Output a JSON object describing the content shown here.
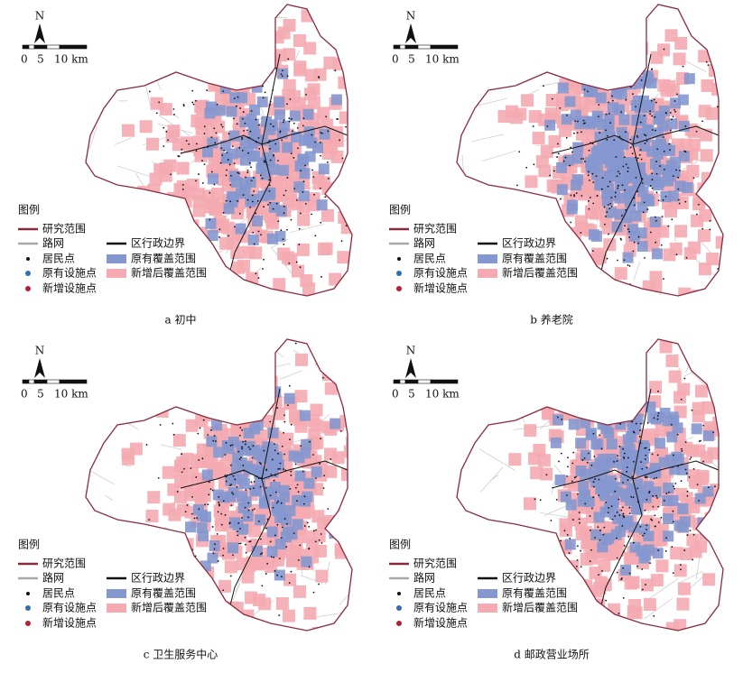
{
  "north": "N",
  "scale_bar": {
    "labels": [
      "0",
      "5",
      "10 km"
    ]
  },
  "legend": {
    "title": "图例",
    "items": [
      {
        "label": "研究范围",
        "symbol": "line",
        "color": "#8b2a3e"
      },
      {
        "label": "路网",
        "symbol": "line",
        "color": "#a8a8a8"
      },
      {
        "label": "居民点",
        "symbol": "dot",
        "color": "#111111"
      },
      {
        "label": "原有设施点",
        "symbol": "dot",
        "color": "#2f6db5"
      },
      {
        "label": "新增设施点",
        "symbol": "dot",
        "color": "#b22234"
      },
      {
        "label": "区行政边界",
        "symbol": "line",
        "color": "#111111"
      },
      {
        "label": "原有覆盖范围",
        "symbol": "rect",
        "color": "#8597cf"
      },
      {
        "label": "新增后覆盖范围",
        "symbol": "rect",
        "color": "#f4aab0"
      }
    ]
  },
  "panels": [
    {
      "caption": "a 初中"
    },
    {
      "caption": "b 养老院"
    },
    {
      "caption": "c 卫生服务中心"
    },
    {
      "caption": "d 邮政营业场所"
    }
  ]
}
